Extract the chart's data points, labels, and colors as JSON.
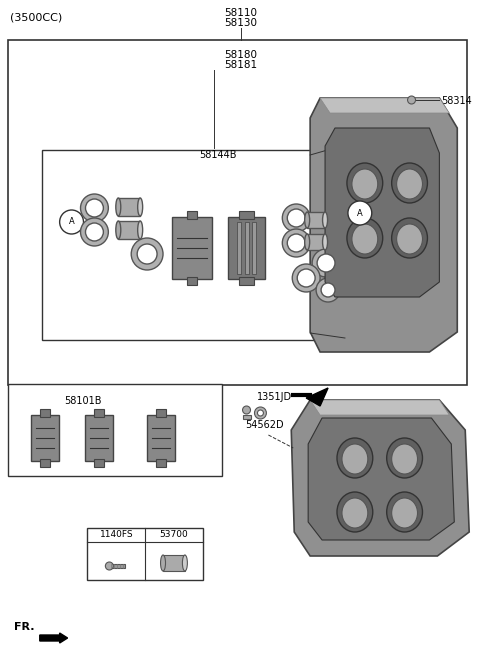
{
  "title": "(3500CC)",
  "background_color": "#ffffff",
  "fig_width": 4.8,
  "fig_height": 6.57,
  "dpi": 100,
  "top_label1": "58110",
  "top_label2": "58130",
  "inner_top1": "58180",
  "inner_top2": "58181",
  "label_58314": "58314",
  "label_58144B": "58144B",
  "label_58101B": "58101B",
  "label_1351JD": "1351JD",
  "label_54562D": "54562D",
  "label_1140FS": "1140FS",
  "label_53700": "53700",
  "label_fr": "FR.",
  "circle_a": "A"
}
